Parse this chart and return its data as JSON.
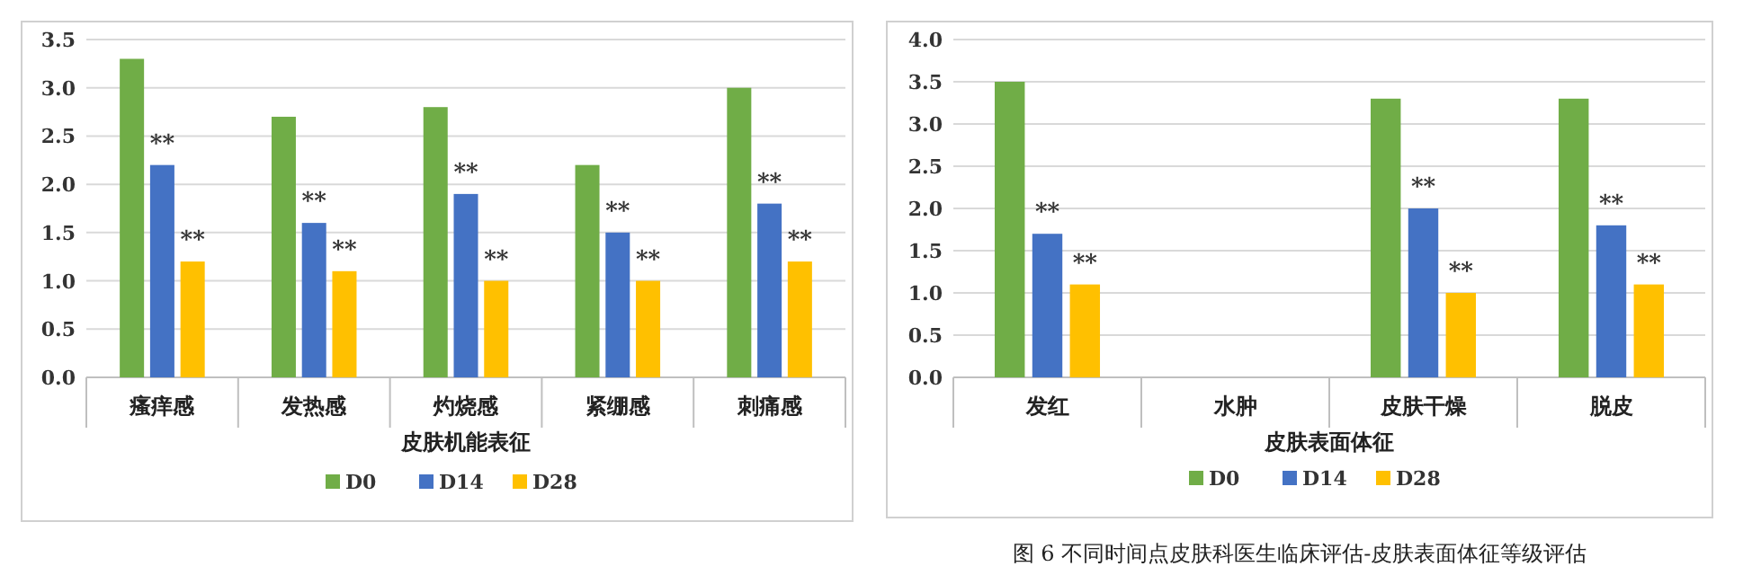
{
  "chart_data": [
    {
      "type": "bar",
      "xlabel": "皮肤机能表征",
      "categories": [
        "瘙痒感",
        "发热感",
        "灼烧感",
        "紧绷感",
        "刺痛感"
      ],
      "series": [
        {
          "name": "D0",
          "color": "#70ad47",
          "values": [
            3.3,
            2.7,
            2.8,
            2.2,
            3.0
          ]
        },
        {
          "name": "D14",
          "color": "#4472c4",
          "values": [
            2.2,
            1.6,
            1.9,
            1.5,
            1.8
          ]
        },
        {
          "name": "D28",
          "color": "#ffc000",
          "values": [
            1.2,
            1.1,
            1.0,
            1.0,
            1.2
          ]
        }
      ],
      "ylim": [
        0,
        3.5
      ],
      "yticks": [
        {
          "value": 0,
          "label": "0.0"
        },
        {
          "value": 0.5,
          "label": "0.5"
        },
        {
          "value": 1,
          "label": "1.0"
        },
        {
          "value": 1.5,
          "label": "1.5"
        },
        {
          "value": 2,
          "label": "2.0"
        },
        {
          "value": 2.5,
          "label": "2.5"
        },
        {
          "value": 3,
          "label": "3.0"
        },
        {
          "value": 3.5,
          "label": "3.5"
        }
      ],
      "grid": "y",
      "legend": "bottom",
      "annotations": [
        {
          "text": "**",
          "x": "瘙痒感",
          "y": 2.2
        },
        "**",
        {
          "text": "**",
          "x": "发热感",
          "y": 1.6
        },
        "**",
        {
          "text": "**",
          "x": "灼烧感",
          "y": 1.9
        },
        "**",
        {
          "text": "**",
          "x": "紧绷感",
          "y": 1.5
        },
        "**",
        {
          "text": "**",
          "x": "刺痛感",
          "y": 1.8
        },
        "**"
      ]
    },
    {
      "type": "bar",
      "xlabel": "皮肤表面体征",
      "categories": [
        "发红",
        "水肿",
        "皮肤干燥",
        "脱皮"
      ],
      "series": [
        {
          "name": "D0",
          "color": "#70ad47",
          "values": [
            3.5,
            0,
            3.3,
            3.3
          ]
        },
        {
          "name": "D14",
          "color": "#4472c4",
          "values": [
            1.7,
            0,
            2.0,
            1.8
          ]
        },
        {
          "name": "D28",
          "color": "#ffc000",
          "values": [
            1.1,
            0,
            1.0,
            1.1
          ]
        }
      ],
      "ylim": [
        0,
        4
      ],
      "yticks": [
        {
          "value": 0,
          "label": "0.0"
        },
        {
          "value": 0.5,
          "label": "0.5"
        },
        {
          "value": 1,
          "label": "1.0"
        },
        {
          "value": 1.5,
          "label": "1.5"
        },
        {
          "value": 2,
          "label": "2.0"
        },
        {
          "value": 2.5,
          "label": "2.5"
        },
        {
          "value": 3,
          "label": "3.0"
        },
        {
          "value": 3.5,
          "label": "3.5"
        },
        {
          "value": 4,
          "label": "4.0"
        }
      ],
      "grid": "y",
      "legend": "bottom",
      "annotations": [
        {
          "text": "**",
          "x": "发红",
          "y": 1.7
        },
        "**",
        {
          "text": "**",
          "x": "皮肤干燥",
          "y": 2.0
        },
        "**",
        {
          "text": "**",
          "x": "脱皮",
          "y": 1.8
        },
        "**",
        "图 6  不同时间点皮肤科医生临床评估-皮肤表面体征等级评估"
      ]
    }
  ]
}
